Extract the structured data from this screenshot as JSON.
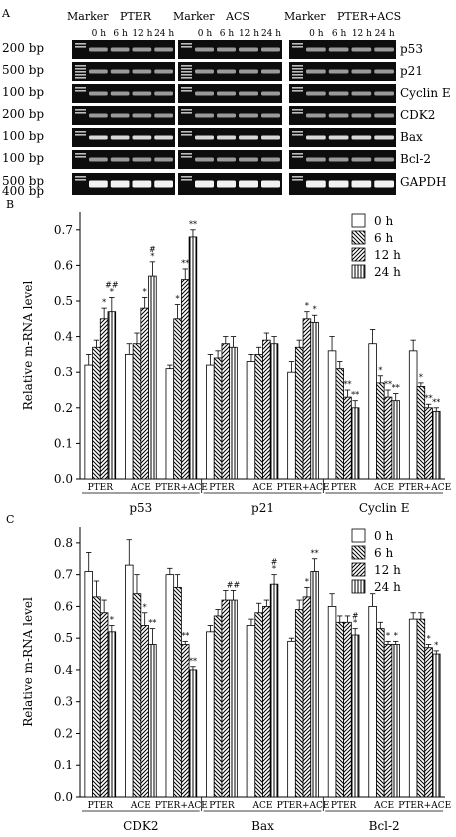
{
  "panel_a": {
    "panel_letter": "A",
    "groups": [
      {
        "marker_label": "Marker",
        "group_label": "PTER",
        "time_labels": [
          "0 h",
          "6 h",
          "12 h",
          "24 h"
        ]
      },
      {
        "marker_label": "Marker",
        "group_label": "ACS",
        "time_labels": [
          "0 h",
          "6 h",
          "12 h",
          "24 h"
        ]
      },
      {
        "marker_label": "Marker",
        "group_label": "PTER+ACS",
        "time_labels": [
          "0 h",
          "6 h",
          "12 h",
          "24 h"
        ]
      }
    ],
    "rows": [
      {
        "size": "200 bp",
        "gene": "p53"
      },
      {
        "size": "500 bp",
        "gene": "p21"
      },
      {
        "size": "100 bp",
        "gene": "Cyclin E"
      },
      {
        "size": "200 bp",
        "gene": "CDK2"
      },
      {
        "size": "100 bp",
        "gene": "Bax"
      },
      {
        "size": "100 bp",
        "gene": "Bcl-2"
      },
      {
        "size": "500 bp",
        "size2": "400 bp",
        "gene": "GAPDH"
      }
    ]
  },
  "chart_data": [
    {
      "type": "bar",
      "panel_letter": "B",
      "ylabel": "Relative m-RNA level",
      "ylim": [
        0,
        0.75
      ],
      "yticks": [
        "0.0",
        "0.1",
        "0.2",
        "0.3",
        "0.4",
        "0.5",
        "0.6",
        "0.7"
      ],
      "gene_groups": [
        "p53",
        "p21",
        "Cyclin E"
      ],
      "treatments": [
        "PTER",
        "ACE",
        "PTER+ACE"
      ],
      "series_names": [
        "0 h",
        "6 h",
        "12 h",
        "24 h"
      ],
      "legend_position": "top-right",
      "values": [
        [
          0.32,
          0.37,
          0.45,
          0.47
        ],
        [
          0.35,
          0.38,
          0.48,
          0.57
        ],
        [
          0.31,
          0.45,
          0.56,
          0.68
        ],
        [
          0.32,
          0.34,
          0.38,
          0.37
        ],
        [
          0.33,
          0.35,
          0.39,
          0.38
        ],
        [
          0.3,
          0.37,
          0.45,
          0.44
        ],
        [
          0.36,
          0.31,
          0.23,
          0.2
        ],
        [
          0.38,
          0.27,
          0.23,
          0.22
        ],
        [
          0.36,
          0.26,
          0.2,
          0.19
        ]
      ],
      "errors": [
        [
          0.03,
          0.02,
          0.03,
          0.04
        ],
        [
          0.03,
          0.03,
          0.03,
          0.04
        ],
        [
          0.01,
          0.04,
          0.03,
          0.02
        ],
        [
          0.03,
          0.02,
          0.02,
          0.03
        ],
        [
          0.02,
          0.02,
          0.02,
          0.02
        ],
        [
          0.03,
          0.02,
          0.02,
          0.02
        ],
        [
          0.04,
          0.02,
          0.02,
          0.02
        ],
        [
          0.04,
          0.02,
          0.02,
          0.02
        ],
        [
          0.03,
          0.01,
          0.01,
          0.01
        ]
      ],
      "significance": [
        [
          null,
          null,
          "*",
          "##\n*"
        ],
        [
          null,
          null,
          "*",
          "#\n*"
        ],
        [
          null,
          "*",
          "**",
          "**"
        ],
        [
          null,
          null,
          null,
          null
        ],
        [
          null,
          null,
          null,
          null
        ],
        [
          null,
          null,
          "*",
          "*"
        ],
        [
          null,
          null,
          "**",
          "**"
        ],
        [
          null,
          "*",
          "**",
          "**"
        ],
        [
          null,
          "*",
          "**",
          "**"
        ]
      ]
    },
    {
      "type": "bar",
      "panel_letter": "C",
      "ylabel": "Relative m-RNA level",
      "ylim": [
        0,
        0.85
      ],
      "yticks": [
        "0.0",
        "0.1",
        "0.2",
        "0.3",
        "0.4",
        "0.5",
        "0.6",
        "0.7",
        "0.8"
      ],
      "gene_groups": [
        "CDK2",
        "Bax",
        "Bcl-2"
      ],
      "treatments": [
        "PTER",
        "ACE",
        "PTER+ACE"
      ],
      "series_names": [
        "0 h",
        "6 h",
        "12 h",
        "24 h"
      ],
      "legend_position": "top-right",
      "values": [
        [
          0.71,
          0.63,
          0.58,
          0.52
        ],
        [
          0.73,
          0.64,
          0.54,
          0.48
        ],
        [
          0.7,
          0.66,
          0.48,
          0.4
        ],
        [
          0.52,
          0.57,
          0.62,
          0.62
        ],
        [
          0.54,
          0.58,
          0.6,
          0.67
        ],
        [
          0.49,
          0.59,
          0.63,
          0.71
        ],
        [
          0.6,
          0.55,
          0.55,
          0.51
        ],
        [
          0.6,
          0.53,
          0.48,
          0.48
        ],
        [
          0.56,
          0.56,
          0.47,
          0.45
        ]
      ],
      "errors": [
        [
          0.06,
          0.05,
          0.04,
          0.02
        ],
        [
          0.08,
          0.06,
          0.04,
          0.05
        ],
        [
          0.02,
          0.04,
          0.01,
          0.01
        ],
        [
          0.02,
          0.02,
          0.03,
          0.03
        ],
        [
          0.02,
          0.03,
          0.02,
          0.03
        ],
        [
          0.01,
          0.03,
          0.03,
          0.04
        ],
        [
          0.04,
          0.02,
          0.02,
          0.02
        ],
        [
          0.04,
          0.02,
          0.01,
          0.01
        ],
        [
          0.02,
          0.02,
          0.01,
          0.01
        ]
      ],
      "significance": [
        [
          null,
          null,
          null,
          "*"
        ],
        [
          null,
          null,
          "*",
          "**"
        ],
        [
          null,
          null,
          "**",
          "**"
        ],
        [
          null,
          null,
          null,
          "##"
        ],
        [
          null,
          null,
          null,
          "#\n*"
        ],
        [
          null,
          null,
          "*",
          "**"
        ],
        [
          null,
          null,
          null,
          "#\n*"
        ],
        [
          null,
          null,
          "*",
          "*"
        ],
        [
          null,
          null,
          "*",
          "*"
        ]
      ]
    }
  ]
}
